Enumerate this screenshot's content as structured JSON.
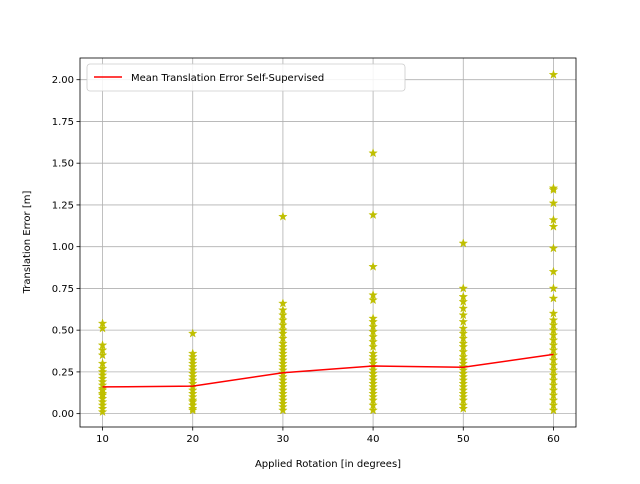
{
  "chart_data": {
    "type": "scatter",
    "xlabel": "Applied Rotation [in degrees]",
    "ylabel": "Translation Error [m]",
    "xlim": [
      7.5,
      62.5
    ],
    "ylim": [
      -0.08,
      2.13
    ],
    "grid": true,
    "legend_position": "top-left",
    "x_ticks": [
      10,
      20,
      30,
      40,
      50,
      60
    ],
    "x_tick_labels": [
      "10",
      "20",
      "30",
      "40",
      "50",
      "60"
    ],
    "y_ticks": [
      0.0,
      0.25,
      0.5,
      0.75,
      1.0,
      1.25,
      1.5,
      1.75,
      2.0
    ],
    "y_tick_labels": [
      "0.00",
      "0.25",
      "0.50",
      "0.75",
      "1.00",
      "1.25",
      "1.50",
      "1.75",
      "2.00"
    ],
    "series": [
      {
        "name": "Mean Translation Error Self-Supervised",
        "kind": "line",
        "color": "#ff0000",
        "x": [
          10,
          20,
          30,
          40,
          50,
          60
        ],
        "y": [
          0.16,
          0.165,
          0.245,
          0.285,
          0.278,
          0.355
        ]
      },
      {
        "kind": "scatter",
        "marker": "star",
        "color": "#bfbf00",
        "points": [
          {
            "x": 10,
            "y": [
              0.01,
              0.03,
              0.05,
              0.07,
              0.09,
              0.11,
              0.12,
              0.14,
              0.15,
              0.17,
              0.19,
              0.21,
              0.23,
              0.25,
              0.27,
              0.3,
              0.35,
              0.38,
              0.41,
              0.51,
              0.54
            ]
          },
          {
            "x": 20,
            "y": [
              0.02,
              0.03,
              0.05,
              0.07,
              0.08,
              0.1,
              0.12,
              0.14,
              0.16,
              0.18,
              0.2,
              0.22,
              0.24,
              0.26,
              0.28,
              0.3,
              0.32,
              0.34,
              0.36,
              0.48
            ]
          },
          {
            "x": 30,
            "y": [
              0.02,
              0.04,
              0.06,
              0.08,
              0.1,
              0.12,
              0.14,
              0.16,
              0.18,
              0.2,
              0.22,
              0.24,
              0.26,
              0.28,
              0.3,
              0.32,
              0.34,
              0.36,
              0.38,
              0.4,
              0.42,
              0.45,
              0.48,
              0.5,
              0.53,
              0.56,
              0.59,
              0.62,
              0.66,
              1.18
            ]
          },
          {
            "x": 40,
            "y": [
              0.02,
              0.05,
              0.08,
              0.1,
              0.12,
              0.14,
              0.16,
              0.18,
              0.2,
              0.22,
              0.24,
              0.26,
              0.28,
              0.3,
              0.32,
              0.34,
              0.36,
              0.4,
              0.43,
              0.46,
              0.49,
              0.52,
              0.55,
              0.57,
              0.68,
              0.71,
              0.88,
              1.19,
              1.56
            ]
          },
          {
            "x": 50,
            "y": [
              0.03,
              0.05,
              0.08,
              0.1,
              0.12,
              0.14,
              0.16,
              0.18,
              0.2,
              0.22,
              0.24,
              0.26,
              0.28,
              0.3,
              0.32,
              0.34,
              0.37,
              0.4,
              0.42,
              0.45,
              0.48,
              0.51,
              0.55,
              0.59,
              0.63,
              0.67,
              0.7,
              0.75,
              1.02
            ]
          },
          {
            "x": 60,
            "y": [
              0.02,
              0.05,
              0.08,
              0.11,
              0.14,
              0.17,
              0.2,
              0.23,
              0.26,
              0.29,
              0.32,
              0.35,
              0.38,
              0.41,
              0.44,
              0.47,
              0.5,
              0.53,
              0.56,
              0.6,
              0.69,
              0.75,
              0.85,
              0.99,
              1.12,
              1.16,
              1.26,
              1.34,
              1.35,
              2.03
            ]
          }
        ]
      }
    ]
  }
}
